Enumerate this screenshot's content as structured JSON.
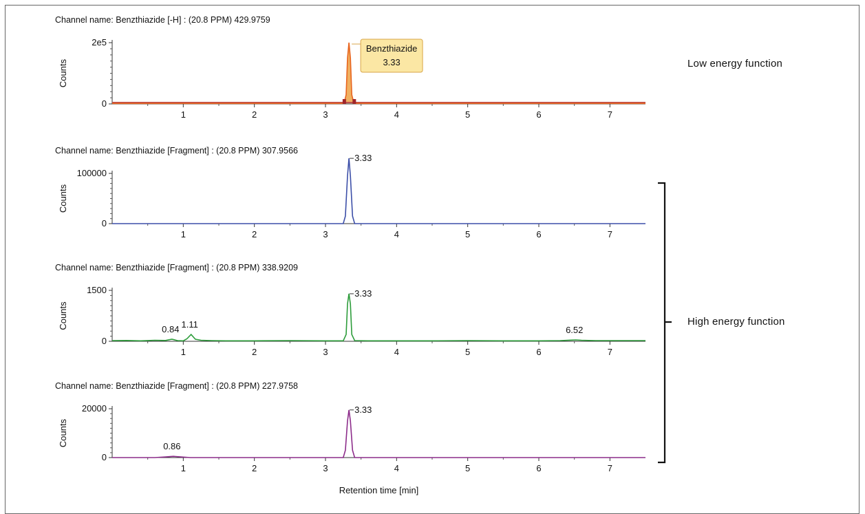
{
  "annotations": {
    "low_energy": "Low energy function",
    "high_energy": "High energy function"
  },
  "chart_data": [
    {
      "type": "line",
      "title": "Channel name: Benzthiazide [-H] : (20.8 PPM) 429.9759",
      "ylabel": "Counts",
      "xlim": [
        0,
        7.5
      ],
      "ylim": [
        0,
        200000
      ],
      "yticks": [
        0,
        200000
      ],
      "ytick_labels": [
        "0",
        "2e5"
      ],
      "xticks": [
        1,
        2,
        3,
        4,
        5,
        6,
        7
      ],
      "color": "#e8641e",
      "peak_fill": "#f0b060",
      "baseline_color": "#c0504d",
      "series": [
        {
          "x": [
            0,
            3.26,
            3.29,
            3.31,
            3.33,
            3.35,
            3.37,
            3.4,
            7.5
          ],
          "y": [
            1500,
            1500,
            30000,
            150000,
            200000,
            150000,
            30000,
            1500,
            1500
          ]
        }
      ],
      "peaks": [
        {
          "x": 3.33,
          "label": "3.33",
          "name": "Benzthiazide"
        }
      ]
    },
    {
      "type": "line",
      "title": "Channel name: Benzthiazide [Fragment] : (20.8 PPM) 307.9566",
      "ylabel": "Counts",
      "xlim": [
        0,
        7.5
      ],
      "ylim": [
        0,
        100000
      ],
      "yticks": [
        0,
        100000
      ],
      "ytick_labels": [
        "0",
        "100000"
      ],
      "xticks": [
        1,
        2,
        3,
        4,
        5,
        6,
        7
      ],
      "color": "#3c4fa8",
      "series": [
        {
          "x": [
            0,
            3.25,
            3.28,
            3.31,
            3.33,
            3.35,
            3.38,
            3.41,
            7.5
          ],
          "y": [
            0,
            0,
            15000,
            95000,
            130000,
            95000,
            15000,
            0,
            0
          ]
        }
      ],
      "peaks": [
        {
          "x": 3.33,
          "label": "3.33"
        }
      ]
    },
    {
      "type": "line",
      "title": "Channel name: Benzthiazide [Fragment] : (20.8 PPM) 338.9209",
      "ylabel": "Counts",
      "xlim": [
        0,
        7.5
      ],
      "ylim": [
        0,
        1500
      ],
      "yticks": [
        0,
        1500
      ],
      "ytick_labels": [
        "0",
        "1500"
      ],
      "xticks": [
        1,
        2,
        3,
        4,
        5,
        6,
        7
      ],
      "color": "#2c9c3a",
      "series": [
        {
          "x": [
            0,
            0.2,
            0.4,
            0.6,
            0.75,
            0.84,
            0.92,
            1.0,
            1.05,
            1.11,
            1.17,
            1.25,
            1.4,
            1.6,
            2.0,
            2.5,
            3.0,
            3.25,
            3.29,
            3.31,
            3.33,
            3.35,
            3.37,
            3.41,
            3.6,
            4.0,
            4.5,
            5.0,
            5.5,
            6.0,
            6.3,
            6.45,
            6.52,
            6.6,
            6.8,
            7.0,
            7.5
          ],
          "y": [
            20,
            25,
            15,
            30,
            25,
            60,
            20,
            15,
            70,
            200,
            60,
            30,
            20,
            15,
            15,
            20,
            15,
            15,
            200,
            1100,
            1400,
            1100,
            200,
            20,
            15,
            15,
            15,
            20,
            15,
            15,
            20,
            35,
            40,
            30,
            20,
            20,
            20
          ]
        }
      ],
      "peaks": [
        {
          "x": 0.84,
          "label": "0.84"
        },
        {
          "x": 1.11,
          "label": "1.11"
        },
        {
          "x": 3.33,
          "label": "3.33"
        },
        {
          "x": 6.52,
          "label": "6.52"
        }
      ]
    },
    {
      "type": "line",
      "title": "Channel name: Benzthiazide [Fragment] : (20.8 PPM) 227.9758",
      "ylabel": "Counts",
      "xlim": [
        0,
        7.5
      ],
      "ylim": [
        0,
        20000
      ],
      "yticks": [
        0,
        20000
      ],
      "ytick_labels": [
        "0",
        "20000"
      ],
      "xticks": [
        1,
        2,
        3,
        4,
        5,
        6,
        7
      ],
      "xlabel": "Retention time [min]",
      "color": "#8c2c8a",
      "series": [
        {
          "x": [
            0,
            0.6,
            0.75,
            0.86,
            0.97,
            1.1,
            3.25,
            3.28,
            3.31,
            3.33,
            3.35,
            3.38,
            3.41,
            7.5
          ],
          "y": [
            0,
            0,
            250,
            500,
            250,
            0,
            0,
            3000,
            15000,
            19500,
            15000,
            3000,
            0,
            0
          ]
        }
      ],
      "peaks": [
        {
          "x": 0.86,
          "label": "0.86"
        },
        {
          "x": 3.33,
          "label": "3.33"
        }
      ]
    }
  ]
}
